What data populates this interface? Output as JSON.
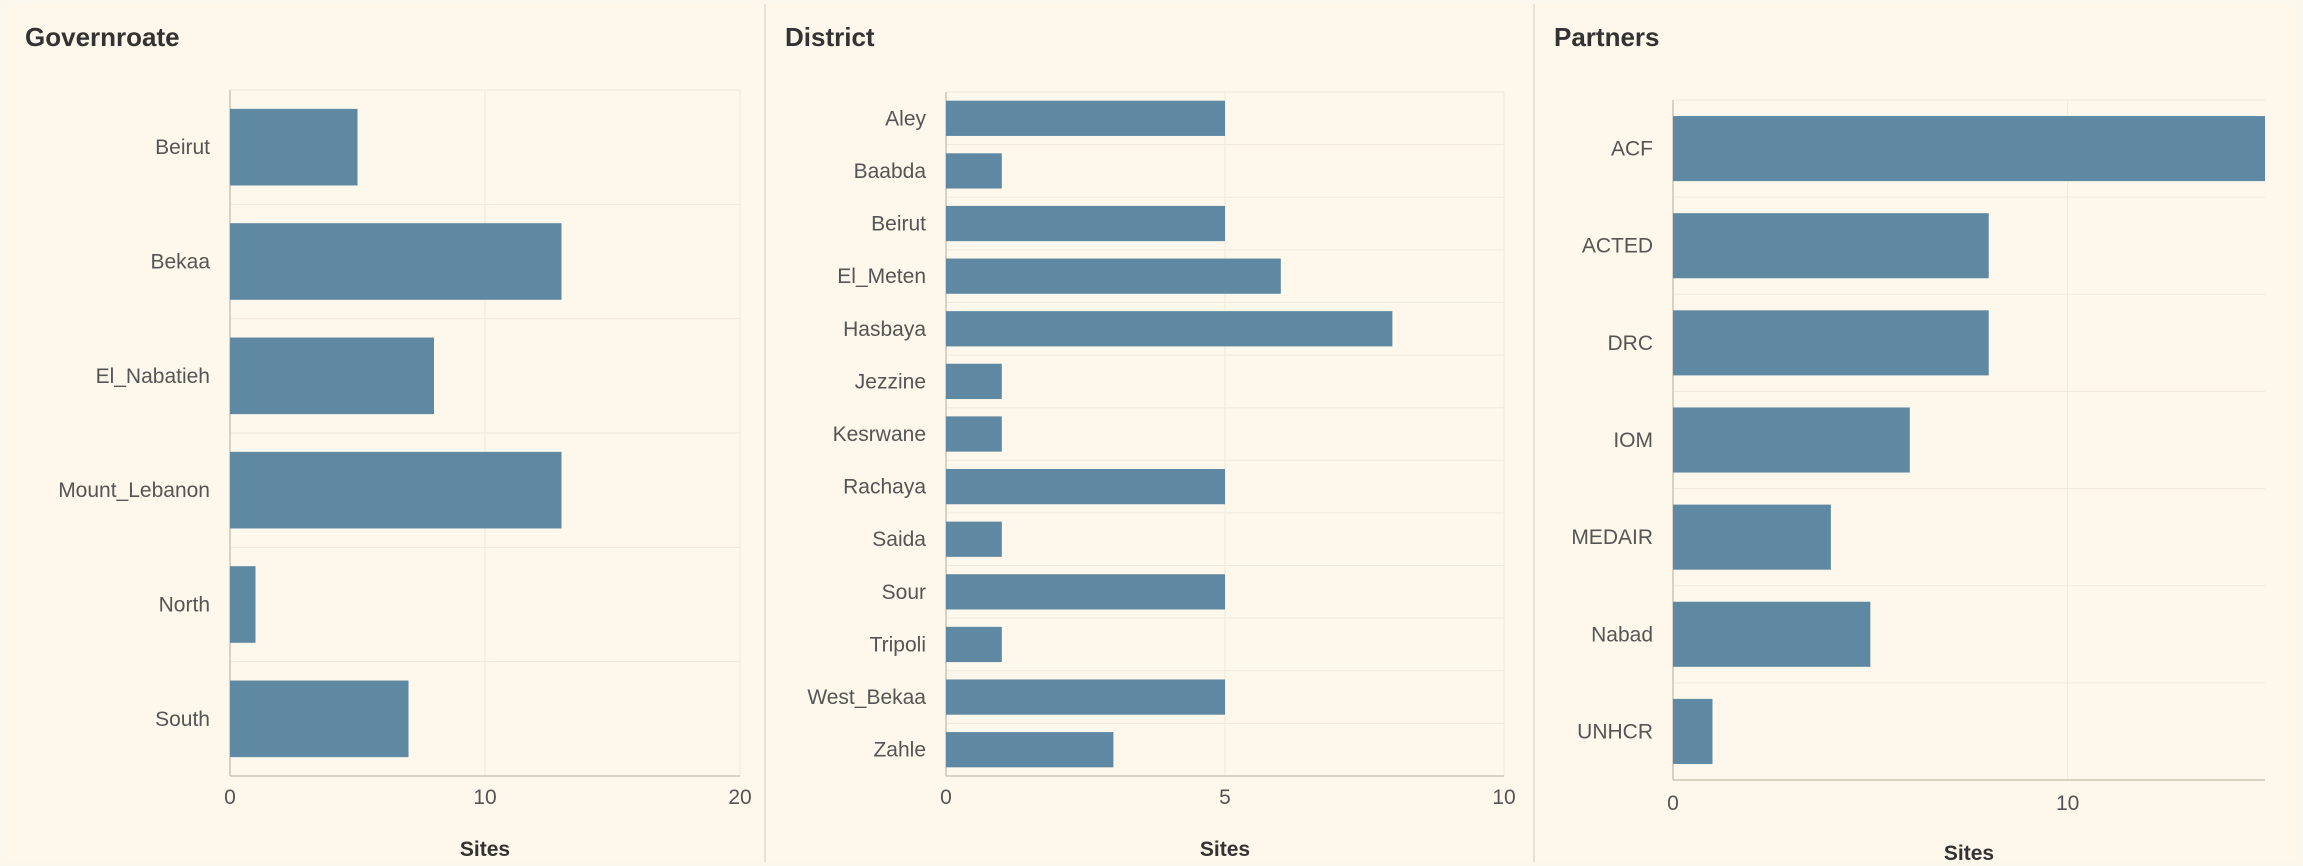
{
  "chart_data": [
    {
      "type": "bar",
      "orientation": "horizontal",
      "title": "Governroate",
      "xlabel": "Sites",
      "ylabel": "",
      "categories": [
        "Beirut",
        "Bekaa",
        "El_Nabatieh",
        "Mount_Lebanon",
        "North",
        "South"
      ],
      "values": [
        5,
        13,
        8,
        13,
        1,
        7
      ],
      "xlim": [
        0,
        20
      ],
      "xticks": [
        0,
        10,
        20
      ],
      "grid": true,
      "bar_color": "#5f89a3"
    },
    {
      "type": "bar",
      "orientation": "horizontal",
      "title": "District",
      "xlabel": "Sites",
      "ylabel": "",
      "categories": [
        "Aley",
        "Baabda",
        "Beirut",
        "El_Meten",
        "Hasbaya",
        "Jezzine",
        "Kesrwane",
        "Rachaya",
        "Saida",
        "Sour",
        "Tripoli",
        "West_Bekaa",
        "Zahle"
      ],
      "values": [
        5,
        1,
        5,
        6,
        8,
        1,
        1,
        5,
        1,
        5,
        1,
        5,
        3
      ],
      "xlim": [
        0,
        10
      ],
      "xticks": [
        0,
        5,
        10
      ],
      "grid": true,
      "bar_color": "#5f89a3"
    },
    {
      "type": "bar",
      "orientation": "horizontal",
      "title": "Partners",
      "xlabel": "Sites",
      "ylabel": "",
      "categories": [
        "ACF",
        "ACTED",
        "DRC",
        "IOM",
        "MEDAIR",
        "Nabad",
        "UNHCR"
      ],
      "values": [
        15,
        8,
        8,
        6,
        4,
        5,
        1
      ],
      "xlim": [
        0,
        15
      ],
      "xticks": [
        0,
        10
      ],
      "grid": true,
      "bar_color": "#5f89a3"
    }
  ]
}
